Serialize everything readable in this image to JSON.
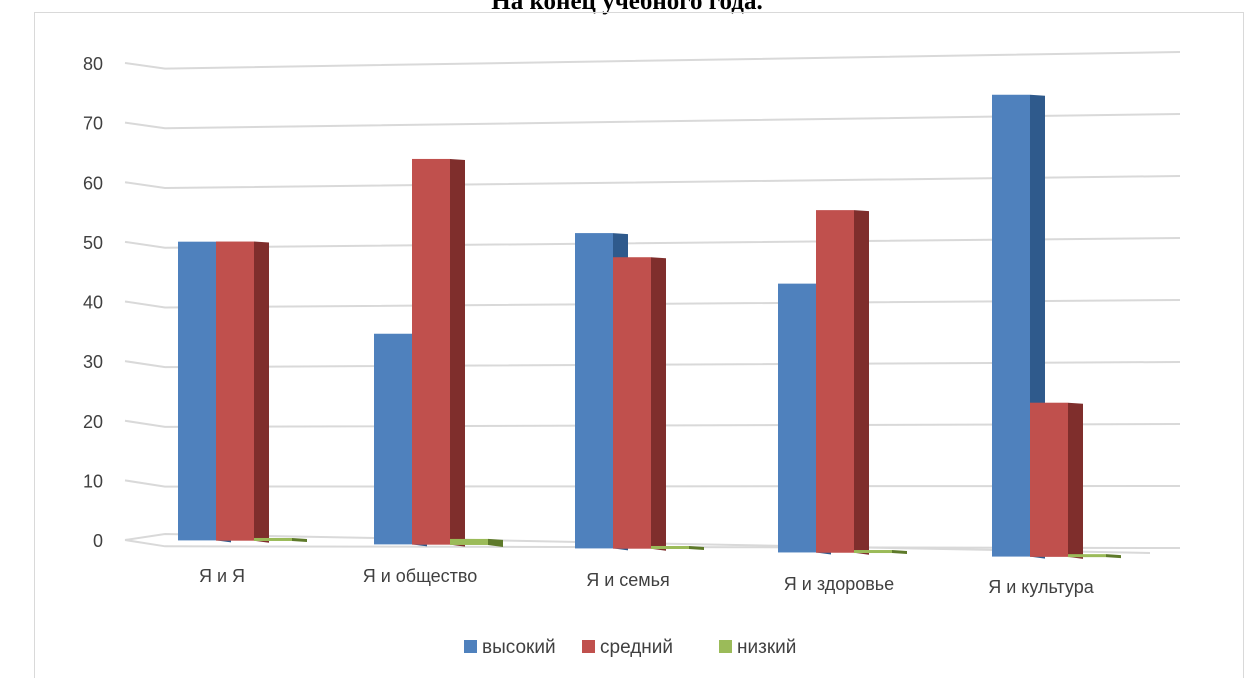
{
  "chart_data": {
    "type": "bar",
    "title": "На конец учебного года.",
    "categories": [
      "Я и Я",
      "Я и общество",
      "Я и семья",
      "Я и здоровье",
      "Я и культура"
    ],
    "series": [
      {
        "name": "высокий",
        "values": [
          50,
          35,
          52,
          44,
          75
        ],
        "color": "#4f81bd",
        "side": "#2f5a8c"
      },
      {
        "name": "средний",
        "values": [
          50,
          64,
          48,
          56,
          25
        ],
        "color": "#c0504d",
        "side": "#7f2e2c"
      },
      {
        "name": "низкий",
        "values": [
          0,
          1,
          0,
          0,
          0
        ],
        "color": "#9bbb59",
        "side": "#5e7a2a"
      }
    ],
    "ylim": [
      0,
      80
    ],
    "yticks": [
      0,
      10,
      20,
      30,
      40,
      50,
      60,
      70,
      80
    ],
    "grid": true,
    "legend_position": "bottom"
  }
}
